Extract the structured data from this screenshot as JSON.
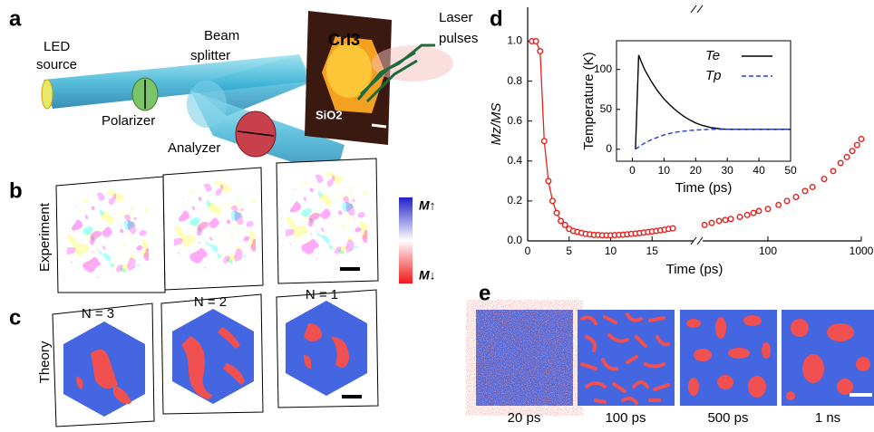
{
  "panel_labels": [
    "a",
    "b",
    "c",
    "d",
    "e"
  ],
  "panel_a": {
    "led_source": [
      "LED",
      "source"
    ],
    "beam_splitter": [
      "Beam",
      "splitter"
    ],
    "laser_pulses": [
      "Laser",
      "pulses"
    ],
    "polarizer": "Polarizer",
    "analyzer": "Analyzer",
    "sample": "CrI3",
    "substrate": "SiO2"
  },
  "panel_b": {
    "ylabel": "Experiment",
    "captions": [
      "N = 3",
      "N = 2",
      "N = 1"
    ],
    "colorbar": {
      "top": "M↑",
      "bottom": "M↓"
    }
  },
  "panel_c": {
    "ylabel": "Theory"
  },
  "panel_e": {
    "captions": [
      "20 ps",
      "100 ps",
      "500 ps",
      "1 ns"
    ]
  },
  "chart_data": [
    {
      "type": "broken-scatter",
      "xlabel": "Time (ps)",
      "ylabel": "Mz/MS",
      "ylim": [
        0,
        1.17
      ],
      "yticks": [
        {
          "value": 0,
          "label": "0.0"
        },
        {
          "value": 0.2,
          "label": "0.2"
        },
        {
          "value": 0.4,
          "label": "0.4"
        },
        {
          "value": 0.6,
          "label": "0.6"
        },
        {
          "value": 0.8,
          "label": "0.8"
        },
        {
          "value": 1,
          "label": "1.0"
        }
      ],
      "segments": [
        {
          "xlim": [
            0,
            20
          ],
          "xticks": [
            0,
            5,
            10,
            15
          ],
          "log": false
        },
        {
          "xlim": [
            20,
            1000
          ],
          "xticks": [
            100,
            1000
          ],
          "log": true
        }
      ],
      "series": [
        {
          "color": "#e8201c",
          "x": [
            0.5,
            1,
            1.5,
            2,
            2.5,
            3,
            3.5,
            4,
            4.5,
            5,
            5.5,
            6,
            6.5,
            7,
            7.5,
            8,
            8.5,
            9,
            9.5,
            10,
            10.5,
            11,
            11.5,
            12,
            12.5,
            13,
            13.5,
            14,
            14.5,
            15,
            15.5,
            16,
            16.5,
            17,
            17.5,
            21,
            25,
            30,
            35,
            40,
            50,
            60,
            70,
            80,
            100,
            130,
            160,
            200,
            250,
            300,
            400,
            500,
            600,
            700,
            800,
            900,
            1000
          ],
          "values": [
            1.0,
            1.0,
            0.95,
            0.5,
            0.3,
            0.2,
            0.14,
            0.1,
            0.08,
            0.06,
            0.05,
            0.045,
            0.04,
            0.035,
            0.033,
            0.03,
            0.03,
            0.028,
            0.028,
            0.028,
            0.029,
            0.03,
            0.031,
            0.033,
            0.035,
            0.037,
            0.039,
            0.042,
            0.044,
            0.047,
            0.05,
            0.053,
            0.056,
            0.06,
            0.063,
            0.08,
            0.09,
            0.1,
            0.105,
            0.11,
            0.12,
            0.13,
            0.14,
            0.15,
            0.16,
            0.18,
            0.2,
            0.22,
            0.25,
            0.27,
            0.31,
            0.35,
            0.39,
            0.42,
            0.45,
            0.48,
            0.51
          ]
        }
      ]
    },
    {
      "type": "line",
      "xlabel": "Time (ps)",
      "ylabel": "Temperature (K)",
      "xlim": [
        -5,
        50
      ],
      "xticks": [
        0,
        10,
        20,
        30,
        40,
        50
      ],
      "ylim": [
        -15,
        136
      ],
      "yticks": [
        0,
        50,
        100
      ],
      "series": [
        {
          "name": "Te",
          "color": "#000000",
          "dash": false,
          "x": [
            1,
            2,
            3,
            4,
            6,
            8,
            10,
            12,
            14,
            16,
            18,
            20,
            22,
            25,
            28,
            30,
            35,
            40,
            45,
            50
          ],
          "values": [
            0,
            118,
            108,
            99,
            85,
            73,
            63,
            55,
            48,
            42,
            37,
            33,
            30,
            27,
            25.5,
            25,
            25,
            25,
            25,
            25
          ]
        },
        {
          "name": "Tp",
          "color": "#1f3fe0",
          "dash": true,
          "x": [
            1,
            2,
            4,
            6,
            8,
            10,
            12,
            14,
            16,
            18,
            20,
            22,
            25,
            28,
            30,
            35,
            40,
            45,
            50
          ],
          "values": [
            0,
            3,
            8,
            12,
            15,
            18,
            20,
            21.5,
            22.5,
            23.5,
            24,
            24.5,
            25,
            25,
            25,
            25,
            25,
            25,
            25
          ]
        }
      ]
    }
  ]
}
